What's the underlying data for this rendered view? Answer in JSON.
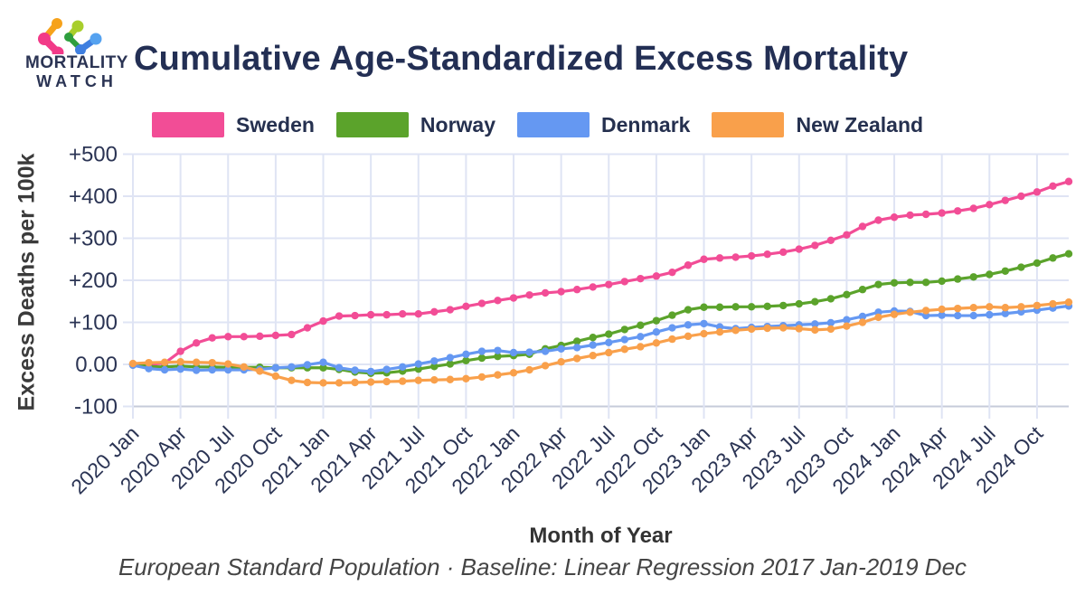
{
  "header": {
    "logo": {
      "line1": "MORTALITY",
      "line2": "WATCH"
    }
  },
  "footer": {
    "subtitle": "European Standard Population · Baseline: Linear Regression 2017 Jan-2019 Dec"
  },
  "colors": {
    "sweden": "#f24d96",
    "norway": "#5ba32b",
    "denmark": "#6598f2",
    "new_zealand": "#f9a04b",
    "navy_text": "#2b3454",
    "gridline": "#dfe4f4",
    "baseline_grid": "#c6cbda"
  },
  "chart_data": {
    "type": "line",
    "title": "Cumulative Age-Standardized Excess Mortality",
    "xlabel": "Month of Year",
    "ylabel": "Excess Deaths per 100k",
    "ylim": [
      -100,
      500
    ],
    "grid": true,
    "legend_position": "top",
    "markers": true,
    "x_tick_every": 3,
    "y_ticks": [
      {
        "value": 500,
        "label": "+500"
      },
      {
        "value": 400,
        "label": "+400"
      },
      {
        "value": 300,
        "label": "+300"
      },
      {
        "value": 200,
        "label": "+200"
      },
      {
        "value": 100,
        "label": "+100"
      },
      {
        "value": 0,
        "label": "0.00"
      },
      {
        "value": -100,
        "label": "-100"
      }
    ],
    "x": [
      "2020 Jan",
      "2020 Feb",
      "2020 Mar",
      "2020 Apr",
      "2020 May",
      "2020 Jun",
      "2020 Jul",
      "2020 Aug",
      "2020 Sep",
      "2020 Oct",
      "2020 Nov",
      "2020 Dec",
      "2021 Jan",
      "2021 Feb",
      "2021 Mar",
      "2021 Apr",
      "2021 May",
      "2021 Jun",
      "2021 Jul",
      "2021 Aug",
      "2021 Sep",
      "2021 Oct",
      "2021 Nov",
      "2021 Dec",
      "2022 Jan",
      "2022 Feb",
      "2022 Mar",
      "2022 Apr",
      "2022 May",
      "2022 Jun",
      "2022 Jul",
      "2022 Aug",
      "2022 Sep",
      "2022 Oct",
      "2022 Nov",
      "2022 Dec",
      "2023 Jan",
      "2023 Feb",
      "2023 Mar",
      "2023 Apr",
      "2023 May",
      "2023 Jun",
      "2023 Jul",
      "2023 Aug",
      "2023 Sep",
      "2023 Oct",
      "2023 Nov",
      "2023 Dec",
      "2024 Jan",
      "2024 Feb",
      "2024 Mar",
      "2024 Apr",
      "2024 May",
      "2024 Jun",
      "2024 Jul",
      "2024 Aug",
      "2024 Sep",
      "2024 Oct",
      "2024 Nov",
      "2024 Dec"
    ],
    "series": [
      {
        "name": "Sweden",
        "color": "#f24d96",
        "values": [
          0,
          0,
          3,
          31,
          51,
          63,
          66,
          66,
          67,
          69,
          71,
          87,
          103,
          115,
          116,
          118,
          118,
          120,
          120,
          125,
          130,
          138,
          145,
          152,
          158,
          165,
          170,
          173,
          178,
          184,
          190,
          197,
          204,
          210,
          219,
          236,
          250,
          253,
          255,
          258,
          262,
          267,
          274,
          283,
          295,
          308,
          328,
          343,
          350,
          355,
          357,
          360,
          365,
          371,
          380,
          390,
          400,
          410,
          424,
          435
        ]
      },
      {
        "name": "Norway",
        "color": "#5ba32b",
        "values": [
          0,
          -5,
          -6,
          -4,
          -6,
          -6,
          -7,
          -7,
          -7,
          -8,
          -8,
          -8,
          -8,
          -12,
          -18,
          -21,
          -20,
          -16,
          -11,
          -5,
          1,
          9,
          15,
          19,
          21,
          24,
          37,
          45,
          55,
          64,
          72,
          83,
          93,
          104,
          117,
          130,
          136,
          136,
          137,
          137,
          138,
          140,
          144,
          149,
          156,
          166,
          178,
          190,
          194,
          195,
          195,
          198,
          203,
          208,
          214,
          222,
          231,
          241,
          253,
          263
        ]
      },
      {
        "name": "Denmark",
        "color": "#6598f2",
        "values": [
          -2,
          -10,
          -13,
          -11,
          -14,
          -13,
          -13,
          -13,
          -12,
          -8,
          -6,
          -1,
          5,
          -8,
          -14,
          -17,
          -12,
          -6,
          1,
          8,
          16,
          24,
          31,
          33,
          28,
          29,
          31,
          37,
          40,
          46,
          52,
          59,
          66,
          77,
          87,
          94,
          97,
          89,
          85,
          88,
          90,
          92,
          94,
          96,
          99,
          106,
          114,
          124,
          127,
          126,
          116,
          117,
          116,
          116,
          118,
          121,
          125,
          129,
          134,
          139
        ]
      },
      {
        "name": "New Zealand",
        "color": "#f9a04b",
        "values": [
          2,
          4,
          5,
          6,
          5,
          4,
          1,
          -6,
          -16,
          -28,
          -38,
          -43,
          -44,
          -44,
          -43,
          -42,
          -41,
          -40,
          -38,
          -37,
          -36,
          -34,
          -30,
          -25,
          -20,
          -13,
          -3,
          6,
          14,
          21,
          28,
          36,
          42,
          51,
          60,
          67,
          73,
          77,
          81,
          84,
          86,
          87,
          85,
          82,
          84,
          91,
          100,
          112,
          119,
          124,
          128,
          131,
          133,
          135,
          137,
          135,
          137,
          140,
          144,
          148
        ]
      }
    ]
  }
}
